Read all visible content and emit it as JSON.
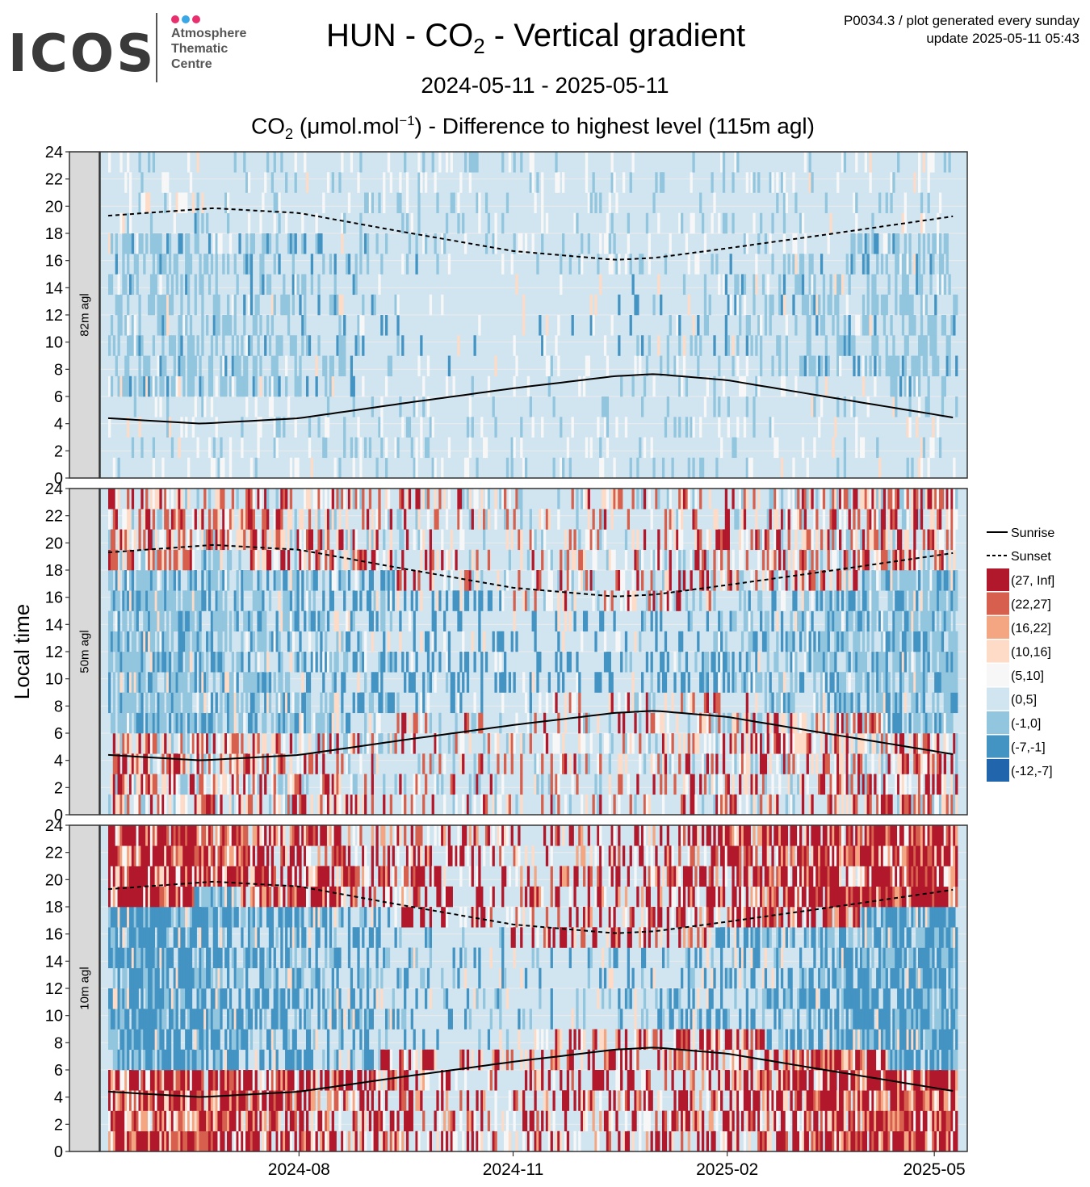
{
  "logo": {
    "word": "ICOS",
    "line1": "Atmosphere",
    "line2": "Thematic",
    "line3": "Centre",
    "dot_colors": [
      "#e8306f",
      "#3aa7e6",
      "#e8306f"
    ]
  },
  "header": {
    "title_a": "HUN - CO",
    "title_sub": "2",
    "title_b": " - Vertical gradient",
    "meta_line1": "P0034.3 / plot generated every sunday",
    "meta_line2": "update  2025-05-11 05:43",
    "date_range": "2024-05-11 - 2025-05-11",
    "subtitle_a": "CO",
    "subtitle_sub": "2",
    "subtitle_b": " (μmol.mol",
    "subtitle_sup": "−1",
    "subtitle_c": ") - Difference to highest level (115m agl)"
  },
  "chart_data": {
    "type": "heatmap",
    "x_range": [
      "2024-05-11",
      "2025-05-11"
    ],
    "y_range": [
      0,
      24
    ],
    "ylabel": "Local time",
    "y_ticks": [
      0,
      2,
      4,
      6,
      8,
      10,
      12,
      14,
      16,
      18,
      20,
      22,
      24
    ],
    "x_ticks": [
      {
        "date": "2024-08-01",
        "label": "2024-08"
      },
      {
        "date": "2024-11-01",
        "label": "2024-11"
      },
      {
        "date": "2025-02-01",
        "label": "2025-02"
      },
      {
        "date": "2025-05-01",
        "label": "2025-05"
      }
    ],
    "grid": true,
    "legend_position": "right",
    "panels": [
      {
        "label": "82m agl"
      },
      {
        "label": "50m agl"
      },
      {
        "label": "10m agl"
      }
    ],
    "color_bins": [
      {
        "label": "(27, Inf]",
        "color": "#b2182b"
      },
      {
        "label": "(22,27]",
        "color": "#d6604d"
      },
      {
        "label": "(16,22]",
        "color": "#f4a582"
      },
      {
        "label": "(10,16]",
        "color": "#fddbc7"
      },
      {
        "label": "(5,10]",
        "color": "#f7f7f7"
      },
      {
        "label": "(0,5]",
        "color": "#d1e5f0"
      },
      {
        "label": "(-1,0]",
        "color": "#92c5de"
      },
      {
        "label": "(-7,-1]",
        "color": "#4393c3"
      },
      {
        "label": "(-12,-7]",
        "color": "#2166ac"
      }
    ],
    "lines": [
      {
        "name": "Sunrise",
        "style": "solid",
        "points": [
          {
            "date": "2024-05-11",
            "hour": 4.4
          },
          {
            "date": "2024-06-20",
            "hour": 4.0
          },
          {
            "date": "2024-08-01",
            "hour": 4.4
          },
          {
            "date": "2024-09-15",
            "hour": 5.5
          },
          {
            "date": "2024-11-01",
            "hour": 6.6
          },
          {
            "date": "2024-12-15",
            "hour": 7.5
          },
          {
            "date": "2025-01-01",
            "hour": 7.65
          },
          {
            "date": "2025-02-01",
            "hour": 7.2
          },
          {
            "date": "2025-03-15",
            "hour": 6.0
          },
          {
            "date": "2025-05-11",
            "hour": 4.4
          }
        ]
      },
      {
        "name": "Sunset",
        "style": "dashed",
        "points": [
          {
            "date": "2024-05-11",
            "hour": 19.3
          },
          {
            "date": "2024-06-25",
            "hour": 19.85
          },
          {
            "date": "2024-08-01",
            "hour": 19.5
          },
          {
            "date": "2024-09-15",
            "hour": 18.1
          },
          {
            "date": "2024-11-01",
            "hour": 16.7
          },
          {
            "date": "2024-12-15",
            "hour": 16.05
          },
          {
            "date": "2025-01-01",
            "hour": 16.2
          },
          {
            "date": "2025-02-01",
            "hour": 16.9
          },
          {
            "date": "2025-03-15",
            "hour": 17.9
          },
          {
            "date": "2025-05-11",
            "hour": 19.3
          }
        ]
      }
    ]
  }
}
